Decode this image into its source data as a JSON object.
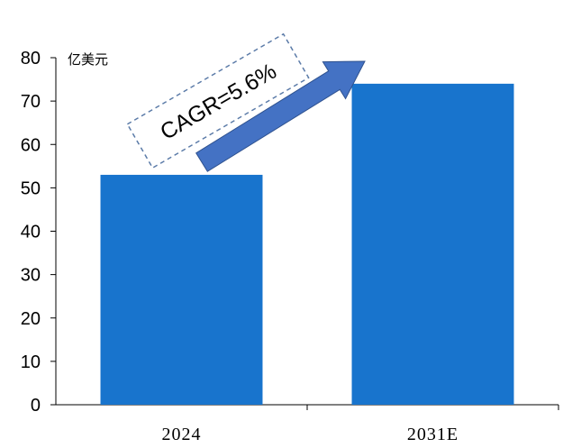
{
  "chart_data": {
    "type": "bar",
    "categories": [
      "2024",
      "2031E"
    ],
    "values": [
      53,
      74
    ],
    "ylabel": "亿美元",
    "ylim": [
      0,
      80
    ],
    "yticks": [
      0,
      10,
      20,
      30,
      40,
      50,
      60,
      70,
      80
    ],
    "grid": false,
    "legend": "none",
    "bar_color": "#1874CD",
    "annotation": {
      "text": "CAGR=5.6%",
      "arrow_color": "#4472C4",
      "box_border_color": "#5B7BA8"
    }
  }
}
